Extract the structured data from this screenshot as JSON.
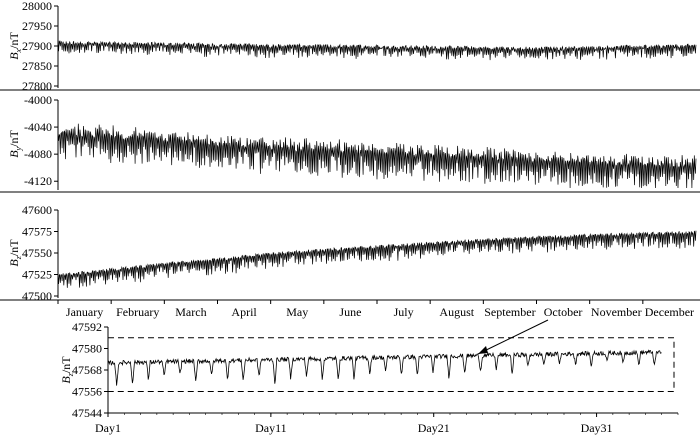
{
  "chart_data": [
    {
      "type": "line",
      "ylabel": "Bx/nT",
      "ylabel_main": "B",
      "ylabel_sub": "x",
      "ylabel_unit": "/nT",
      "ylim": [
        27800,
        28000
      ],
      "yticks": [
        "27800",
        "27850",
        "27900",
        "27950",
        "28000"
      ],
      "x_range": [
        0,
        12
      ],
      "trend": {
        "x": [
          0,
          1,
          2,
          3,
          4,
          5,
          6,
          7,
          8,
          9,
          10,
          11,
          12
        ],
        "y": [
          27908,
          27906,
          27904,
          27902,
          27900,
          27899,
          27898,
          27896,
          27894,
          27893,
          27895,
          27898,
          27900
        ]
      },
      "daily_spike_depth": 22,
      "noise_amp": 5
    },
    {
      "type": "line",
      "ylabel": "By/nT",
      "ylabel_main": "B",
      "ylabel_sub": "y",
      "ylabel_unit": "/nT",
      "ylim": [
        -4130,
        -4000
      ],
      "yticks": [
        "-4000",
        "-4040",
        "-4080",
        "-4120"
      ],
      "x_range": [
        0,
        12
      ],
      "trend": {
        "x": [
          0,
          1,
          2,
          3,
          4,
          5,
          6,
          7,
          8,
          9,
          10,
          11,
          12
        ],
        "y": [
          -4050,
          -4055,
          -4060,
          -4066,
          -4071,
          -4075,
          -4079,
          -4083,
          -4087,
          -4090,
          -4093,
          -4096,
          -4098
        ]
      },
      "daily_spike_depth": 30,
      "noise_amp": 4
    },
    {
      "type": "line",
      "ylabel": "Bz/nT",
      "ylabel_main": "B",
      "ylabel_sub": "z",
      "ylabel_unit": "/nT",
      "ylim": [
        47500,
        47600
      ],
      "yticks": [
        "47500",
        "47525",
        "47550",
        "47575",
        "47600"
      ],
      "x_range": [
        0,
        12
      ],
      "xticks": [
        "January",
        "February",
        "March",
        "April",
        "May",
        "June",
        "July",
        "August",
        "September",
        "October",
        "November",
        "December"
      ],
      "trend": {
        "x": [
          0,
          1,
          2,
          3,
          4,
          5,
          6,
          7,
          8,
          9,
          10,
          11,
          12
        ],
        "y": [
          47524,
          47530,
          47537,
          47542,
          47549,
          47553,
          47557,
          47561,
          47565,
          47568,
          47570,
          47572,
          47574
        ]
      },
      "daily_spike_depth": 14,
      "noise_amp": 2
    },
    {
      "type": "line",
      "ylabel": "Bz/nT",
      "ylabel_main": "B",
      "ylabel_sub": "z",
      "ylabel_unit": "/nT",
      "ylim": [
        47544,
        47592
      ],
      "yticks": [
        "47544",
        "47556",
        "47568",
        "47580",
        "47592"
      ],
      "x_range": [
        1,
        36
      ],
      "xticks": [
        "Day1",
        "Day11",
        "Day21",
        "Day31"
      ],
      "xtick_values": [
        1,
        11,
        21,
        31
      ],
      "baseline": 47572,
      "dip_depths": [
        14,
        12,
        10,
        9,
        8,
        13,
        9,
        11,
        12,
        10,
        14,
        11,
        10,
        12,
        13,
        12,
        9,
        8,
        10,
        11,
        9,
        12,
        10,
        9,
        8,
        11,
        7,
        6,
        5,
        6,
        7,
        4,
        6,
        7,
        8
      ],
      "box": {
        "y_low": 47556,
        "y_high": 47586
      }
    }
  ]
}
